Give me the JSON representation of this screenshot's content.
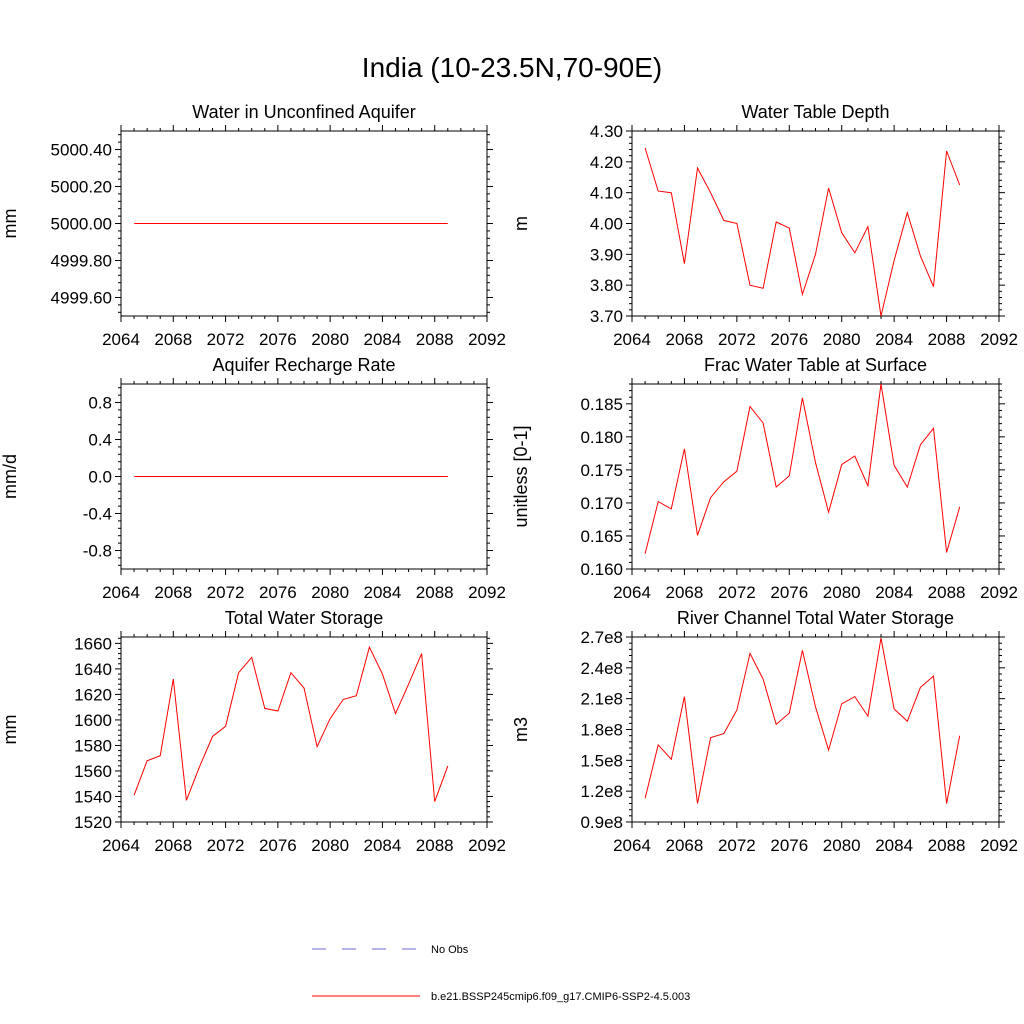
{
  "title": "India (10-23.5N,70-90E)",
  "colors": {
    "model": "#ff0000",
    "obs": "#6b6bd6",
    "axis": "#000000"
  },
  "legend": {
    "entries": [
      {
        "label": "No Obs",
        "style": "dashed",
        "color": "#6b6bd6"
      },
      {
        "label": "b.e21.BSSP245cmip6.f09_g17.CMIP6-SSP2-4.5.003",
        "style": "solid",
        "color": "#ff0000"
      }
    ]
  },
  "chart_data": [
    {
      "type": "line",
      "title": "Water in Unconfined Aquifer",
      "ylabel": "mm",
      "xlim": [
        2064,
        2092
      ],
      "ylim": [
        4999.5,
        5000.5
      ],
      "xticks": [
        2064,
        2068,
        2072,
        2076,
        2080,
        2084,
        2088,
        2092
      ],
      "yticks": [
        4999.6,
        4999.8,
        5000.0,
        5000.2,
        5000.4
      ],
      "ytick_labels": [
        "4999.60",
        "4999.80",
        "5000.00",
        "5000.20",
        "5000.40"
      ],
      "x": [
        2065,
        2066,
        2067,
        2068,
        2069,
        2070,
        2071,
        2072,
        2073,
        2074,
        2075,
        2076,
        2077,
        2078,
        2079,
        2080,
        2081,
        2082,
        2083,
        2084,
        2085,
        2086,
        2087,
        2088,
        2089
      ],
      "series": [
        {
          "values": [
            5000,
            5000,
            5000,
            5000,
            5000,
            5000,
            5000,
            5000,
            5000,
            5000,
            5000,
            5000,
            5000,
            5000,
            5000,
            5000,
            5000,
            5000,
            5000,
            5000,
            5000,
            5000,
            5000,
            5000,
            5000
          ]
        }
      ]
    },
    {
      "type": "line",
      "title": "Water Table Depth",
      "ylabel": "m",
      "xlim": [
        2064,
        2092
      ],
      "ylim": [
        3.7,
        4.3
      ],
      "xticks": [
        2064,
        2068,
        2072,
        2076,
        2080,
        2084,
        2088,
        2092
      ],
      "yticks": [
        3.7,
        3.8,
        3.9,
        4.0,
        4.1,
        4.2,
        4.3
      ],
      "ytick_labels": [
        "3.70",
        "3.80",
        "3.90",
        "4.00",
        "4.10",
        "4.20",
        "4.30"
      ],
      "x": [
        2065,
        2066,
        2067,
        2068,
        2069,
        2070,
        2071,
        2072,
        2073,
        2074,
        2075,
        2076,
        2077,
        2078,
        2079,
        2080,
        2081,
        2082,
        2083,
        2084,
        2085,
        2086,
        2087,
        2088,
        2089
      ],
      "series": [
        {
          "values": [
            4.245,
            4.105,
            4.1,
            3.87,
            4.18,
            4.1,
            4.01,
            4.0,
            3.8,
            3.79,
            4.005,
            3.985,
            3.77,
            3.9,
            4.115,
            3.97,
            3.905,
            3.99,
            3.7,
            3.88,
            4.035,
            3.895,
            3.795,
            4.235,
            4.125
          ]
        }
      ]
    },
    {
      "type": "line",
      "title": "Aquifer Recharge Rate",
      "ylabel": "mm/d",
      "xlim": [
        2064,
        2092
      ],
      "ylim": [
        -1.0,
        1.0
      ],
      "xticks": [
        2064,
        2068,
        2072,
        2076,
        2080,
        2084,
        2088,
        2092
      ],
      "yticks": [
        -0.8,
        -0.4,
        0.0,
        0.4,
        0.8
      ],
      "ytick_labels": [
        "-0.8",
        "-0.4",
        "0.0",
        "0.4",
        "0.8"
      ],
      "x": [
        2065,
        2066,
        2067,
        2068,
        2069,
        2070,
        2071,
        2072,
        2073,
        2074,
        2075,
        2076,
        2077,
        2078,
        2079,
        2080,
        2081,
        2082,
        2083,
        2084,
        2085,
        2086,
        2087,
        2088,
        2089
      ],
      "series": [
        {
          "values": [
            0,
            0,
            0,
            0,
            0,
            0,
            0,
            0,
            0,
            0,
            0,
            0,
            0,
            0,
            0,
            0,
            0,
            0,
            0,
            0,
            0,
            0,
            0,
            0,
            0
          ]
        }
      ]
    },
    {
      "type": "line",
      "title": "Frac Water Table at Surface",
      "ylabel": "unitless [0-1]",
      "xlim": [
        2064,
        2092
      ],
      "ylim": [
        0.16,
        0.188
      ],
      "xticks": [
        2064,
        2068,
        2072,
        2076,
        2080,
        2084,
        2088,
        2092
      ],
      "yticks": [
        0.16,
        0.165,
        0.17,
        0.175,
        0.18,
        0.185
      ],
      "ytick_labels": [
        "0.160",
        "0.165",
        "0.170",
        "0.175",
        "0.180",
        "0.185"
      ],
      "x": [
        2065,
        2066,
        2067,
        2068,
        2069,
        2070,
        2071,
        2072,
        2073,
        2074,
        2075,
        2076,
        2077,
        2078,
        2079,
        2080,
        2081,
        2082,
        2083,
        2084,
        2085,
        2086,
        2087,
        2088,
        2089
      ],
      "series": [
        {
          "values": [
            0.1623,
            0.1702,
            0.1691,
            0.1782,
            0.1651,
            0.1708,
            0.1732,
            0.1748,
            0.1846,
            0.1821,
            0.1724,
            0.1741,
            0.1859,
            0.1761,
            0.1686,
            0.1758,
            0.1771,
            0.1726,
            0.188,
            0.1757,
            0.1724,
            0.1788,
            0.1813,
            0.1625,
            0.1694
          ]
        }
      ]
    },
    {
      "type": "line",
      "title": "Total Water Storage",
      "ylabel": "mm",
      "xlim": [
        2064,
        2092
      ],
      "ylim": [
        1520,
        1665
      ],
      "xticks": [
        2064,
        2068,
        2072,
        2076,
        2080,
        2084,
        2088,
        2092
      ],
      "yticks": [
        1520,
        1540,
        1560,
        1580,
        1600,
        1620,
        1640,
        1660
      ],
      "ytick_labels": [
        "1520",
        "1540",
        "1560",
        "1580",
        "1600",
        "1620",
        "1640",
        "1660"
      ],
      "x": [
        2065,
        2066,
        2067,
        2068,
        2069,
        2070,
        2071,
        2072,
        2073,
        2074,
        2075,
        2076,
        2077,
        2078,
        2079,
        2080,
        2081,
        2082,
        2083,
        2084,
        2085,
        2086,
        2087,
        2088,
        2089
      ],
      "series": [
        {
          "values": [
            1541,
            1568,
            1572,
            1632,
            1537,
            1563,
            1587,
            1595,
            1637,
            1649,
            1609,
            1607,
            1637,
            1625,
            1579,
            1601,
            1616,
            1619,
            1657,
            1636,
            1605,
            1628,
            1652,
            1536,
            1564
          ]
        }
      ]
    },
    {
      "type": "line",
      "title": "River Channel Total Water Storage",
      "ylabel": "m3",
      "xlim": [
        2064,
        2092
      ],
      "ylim": [
        90000000.0,
        270000000.0
      ],
      "xticks": [
        2064,
        2068,
        2072,
        2076,
        2080,
        2084,
        2088,
        2092
      ],
      "yticks": [
        90000000.0,
        120000000.0,
        150000000.0,
        180000000.0,
        210000000.0,
        240000000.0,
        270000000.0
      ],
      "ytick_labels": [
        "0.9e8",
        "1.2e8",
        "1.5e8",
        "1.8e8",
        "2.1e8",
        "2.4e8",
        "2.7e8"
      ],
      "x": [
        2065,
        2066,
        2067,
        2068,
        2069,
        2070,
        2071,
        2072,
        2073,
        2074,
        2075,
        2076,
        2077,
        2078,
        2079,
        2080,
        2081,
        2082,
        2083,
        2084,
        2085,
        2086,
        2087,
        2088,
        2089
      ],
      "series": [
        {
          "values": [
            113000000.0,
            165000000.0,
            151000000.0,
            212000000.0,
            108000000.0,
            172000000.0,
            176000000.0,
            199000000.0,
            254000000.0,
            229000000.0,
            185000000.0,
            196000000.0,
            257000000.0,
            202000000.0,
            160000000.0,
            205000000.0,
            212000000.0,
            193000000.0,
            269000000.0,
            200000000.0,
            188000000.0,
            221000000.0,
            232000000.0,
            108000000.0,
            174000000.0
          ]
        }
      ]
    }
  ]
}
